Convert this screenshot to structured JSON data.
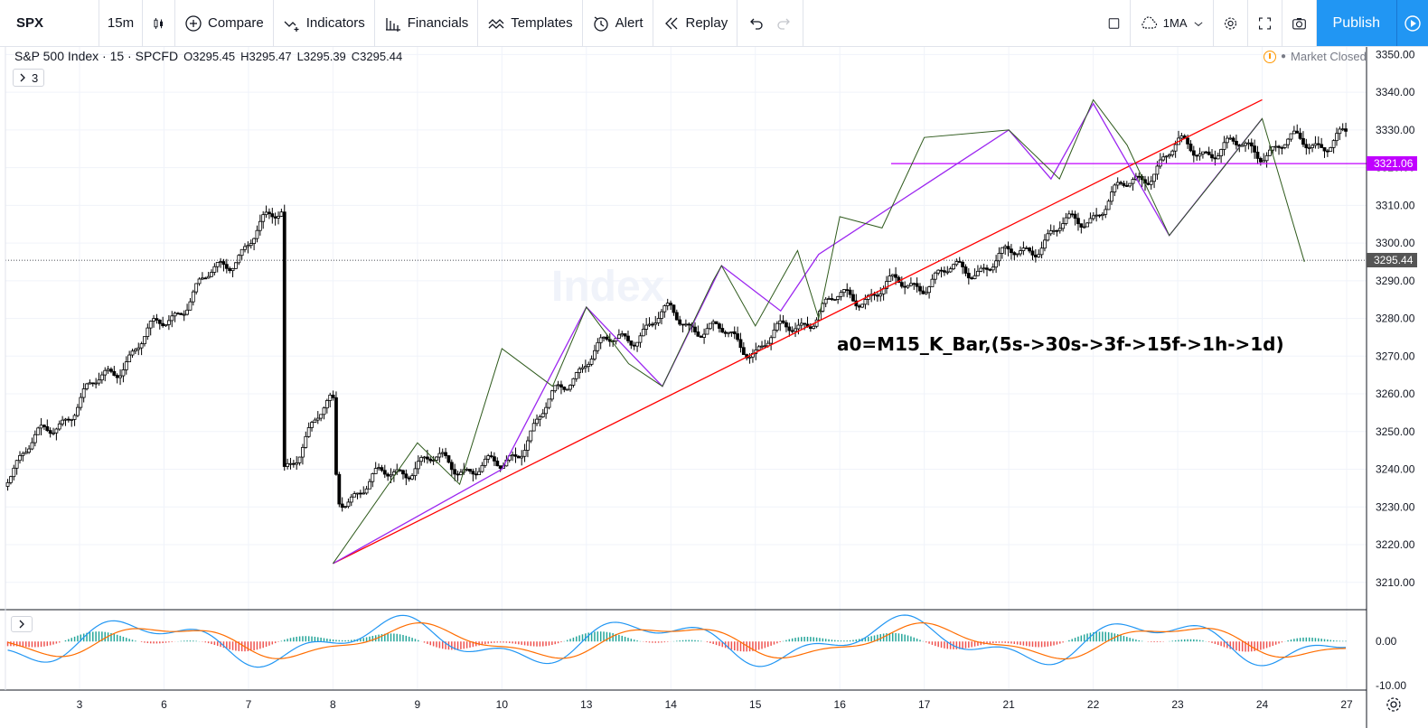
{
  "toolbar": {
    "symbol": "SPX",
    "interval": "15m",
    "compare": "Compare",
    "indicators": "Indicators",
    "financials": "Financials",
    "templates": "Templates",
    "alert": "Alert",
    "replay": "Replay",
    "ma": "1MA",
    "publish": "Publish"
  },
  "legend": {
    "title": "S&P 500 Index · 15 · SPCFD",
    "open": "O3295.45",
    "high": "H3295.47",
    "low": "L3295.39",
    "close": "C3295.44",
    "indicator_count": "3"
  },
  "market_status": "Market Closed",
  "annotation": "a0=M15_K_Bar,(5s->30s->3f->15f->1h->1d)",
  "watermark": "Index",
  "colors": {
    "candle": "#000000",
    "trend_red": "#ff0000",
    "zigzag_purple": "#9c27f0",
    "zigzag_green": "#2e5a1c",
    "level_purple": "#c000ff",
    "macd_blue": "#2196f3",
    "signal_orange": "#ff6d00",
    "hist_pos": "#26a69a",
    "hist_neg": "#ef5350",
    "current_price_badge": "#555555"
  },
  "chart_data": {
    "type": "candlestick",
    "x_ticks": [
      "3",
      "6",
      "7",
      "8",
      "9",
      "10",
      "13",
      "14",
      "15",
      "16",
      "17",
      "21",
      "22",
      "23",
      "24",
      "27"
    ],
    "y_ticks": [
      3210,
      3220,
      3230,
      3240,
      3250,
      3260,
      3270,
      3280,
      3290,
      3300,
      3310,
      3320,
      3330,
      3340,
      3350
    ],
    "ylim": [
      3203,
      3352
    ],
    "current_price": 3295.44,
    "current_price_label": "3295.44",
    "horizontal_level": 3321.06,
    "horizontal_level_label": "3321.06",
    "path_key_days": [
      2.4,
      3.0,
      3.05,
      4.0,
      5.0,
      6.0,
      7.0,
      8.0,
      9.0,
      10.0,
      11.0,
      12.0,
      13.0,
      14.0,
      15.0,
      16.0,
      16.98
    ],
    "path_key_prices": [
      3240,
      3258,
      3232,
      3242,
      3240,
      3270,
      3281,
      3272,
      3285,
      3290,
      3296,
      3308,
      3325,
      3325,
      3328,
      3318,
      3292
    ],
    "red_trend": [
      [
        3.0,
        3215
      ],
      [
        14.0,
        3338
      ]
    ],
    "zigzag_purple": [
      [
        3.0,
        3215
      ],
      [
        5.0,
        3240
      ],
      [
        6.0,
        3283
      ],
      [
        6.9,
        3262
      ],
      [
        7.6,
        3294
      ],
      [
        8.3,
        3282
      ],
      [
        8.75,
        3297
      ],
      [
        11.0,
        3330
      ],
      [
        11.5,
        3317
      ],
      [
        12.0,
        3337
      ],
      [
        12.9,
        3302
      ],
      [
        14.0,
        3333
      ]
    ],
    "zigzag_green": [
      [
        3.0,
        3215
      ],
      [
        4.0,
        3247
      ],
      [
        4.5,
        3236
      ],
      [
        5.0,
        3272
      ],
      [
        5.6,
        3262
      ],
      [
        6.0,
        3283
      ],
      [
        6.5,
        3268
      ],
      [
        6.9,
        3262
      ],
      [
        7.5,
        3290
      ],
      [
        7.6,
        3294
      ],
      [
        8.0,
        3278
      ],
      [
        8.5,
        3298
      ],
      [
        8.75,
        3280
      ],
      [
        9.0,
        3307
      ],
      [
        9.5,
        3304
      ],
      [
        10.0,
        3328
      ],
      [
        11.0,
        3330
      ],
      [
        11.6,
        3317
      ],
      [
        12.0,
        3338
      ],
      [
        12.4,
        3326
      ],
      [
        12.9,
        3302
      ],
      [
        13.4,
        3316
      ],
      [
        14.0,
        3333
      ],
      [
        14.5,
        3295
      ]
    ],
    "oscillator": {
      "y_ticks_labels": [
        "0.00",
        "-10.00"
      ],
      "y_ticks": [
        0,
        -10
      ],
      "ylim": [
        -11,
        7
      ]
    }
  }
}
